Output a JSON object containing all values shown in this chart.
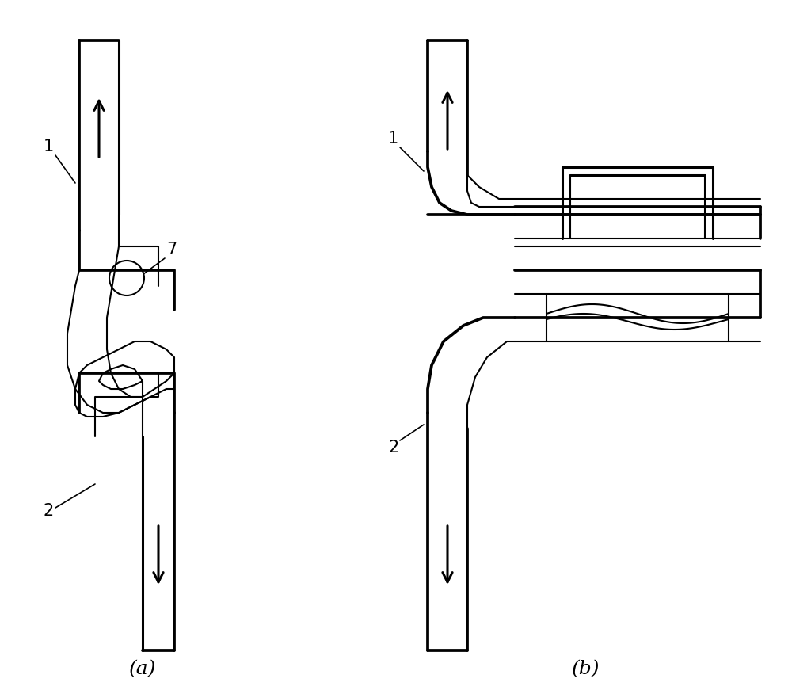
{
  "background_color": "#ffffff",
  "line_color": "#000000",
  "lw_outer": 2.2,
  "lw_inner": 1.5,
  "lw_arrow": 3.0,
  "lw_label": 1.2,
  "fig_width": 10.0,
  "fig_height": 8.71,
  "label_a": "(a)",
  "label_b": "(b)",
  "label_1": "1",
  "label_2": "2",
  "label_7": "7",
  "font_size_caption": 18,
  "font_size_num": 15
}
